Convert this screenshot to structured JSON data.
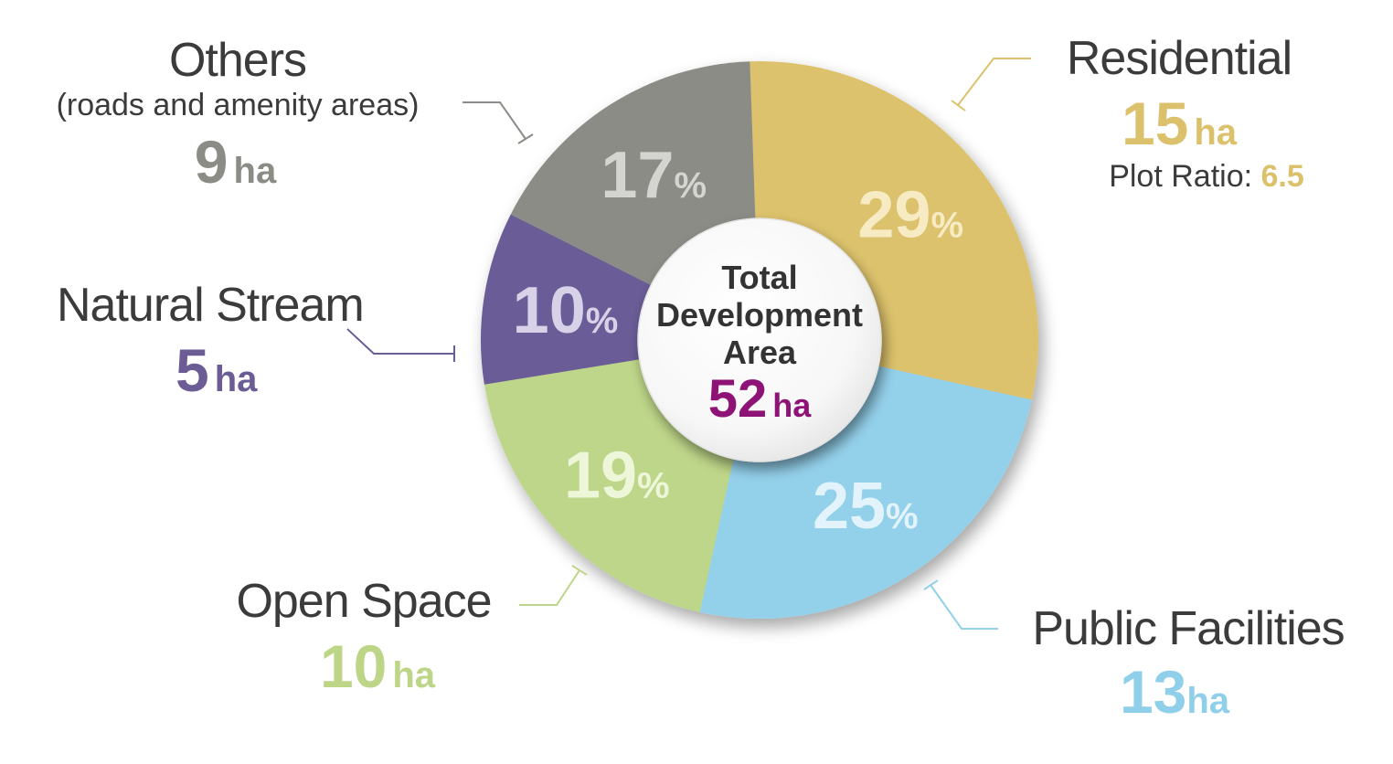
{
  "chart_data": {
    "type": "pie",
    "donut": true,
    "center": {
      "title_lines": [
        "Total",
        "Development",
        "Area"
      ],
      "value": "52",
      "unit": "ha"
    },
    "slices": [
      {
        "key": "residential",
        "name": "Residential",
        "sub": "",
        "percent": 29,
        "area": "15",
        "unit": "ha",
        "extra_label": "Plot Ratio: ",
        "extra_value": "6.5",
        "color": "#dcc26c",
        "pct_color": "#f6ebc3"
      },
      {
        "key": "public",
        "name": "Public Facilities",
        "sub": "",
        "percent": 25,
        "area": "13",
        "unit": "ha",
        "color": "#93d0ea",
        "pct_color": "#e2f3fb"
      },
      {
        "key": "open",
        "name": "Open Space",
        "sub": "",
        "percent": 19,
        "area": "10",
        "unit": "ha",
        "color": "#bed689",
        "pct_color": "#eef6d9"
      },
      {
        "key": "stream",
        "name": "Natural Stream",
        "sub": "",
        "percent": 10,
        "area": "5",
        "unit": "ha",
        "color": "#6b5c96",
        "pct_color": "#d8d2e8"
      },
      {
        "key": "others",
        "name": "Others",
        "sub": "(roads and amenity areas)",
        "percent": 17,
        "area": "9",
        "unit": "ha",
        "color": "#8c8c86",
        "pct_color": "#d4d4d0"
      }
    ]
  }
}
